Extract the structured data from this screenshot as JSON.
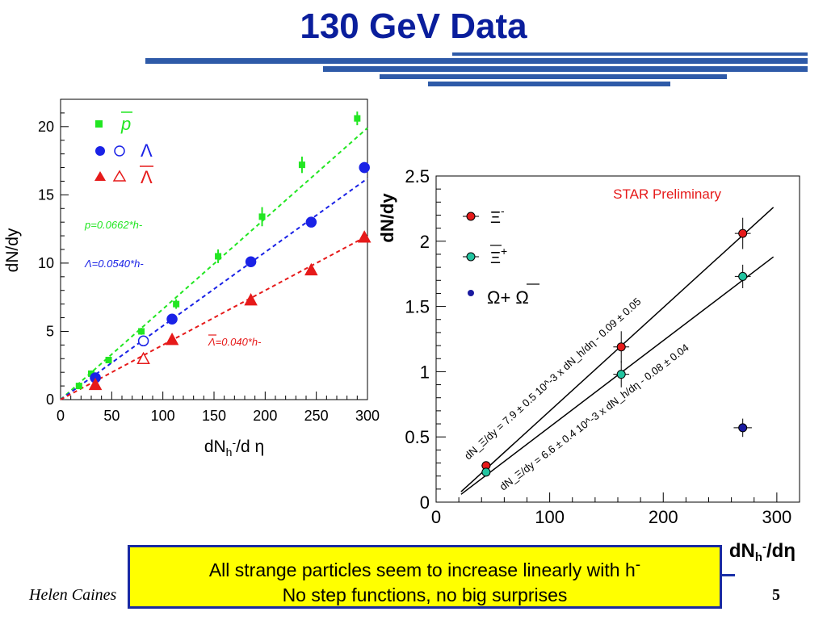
{
  "slide": {
    "title": "130 GeV Data",
    "author": "Helen Caines",
    "page_number": "5",
    "callout_line1": "All strange particles seem to increase linearly with h",
    "callout_line1_sup": "-",
    "callout_line2": "No step functions, no big surprises"
  },
  "colors": {
    "title": "#0a1e9c",
    "green": "#22e622",
    "blue": "#1a22e6",
    "red": "#e61a1a",
    "callout_bg": "#ffff00",
    "stripes": "#2e5aa8"
  },
  "chart_data": [
    {
      "type": "scatter",
      "title": "",
      "xlabel": "dN",
      "xlabel_sub": "h",
      "xlabel_sup": "-",
      "xlabel_rest": "/d η",
      "ylabel": "dN/dy",
      "xlim": [
        0,
        300
      ],
      "ylim": [
        0,
        22
      ],
      "xticks": [
        0,
        50,
        100,
        150,
        200,
        250,
        300
      ],
      "xtick_labels": [
        "0",
        "50",
        "100",
        "150",
        "200",
        "250",
        "300"
      ],
      "yticks": [
        0,
        5,
        10,
        15,
        20
      ],
      "ytick_labels": [
        "0",
        "5",
        "10",
        "15",
        "20"
      ],
      "legend": [
        {
          "symbol": "■",
          "label": "p",
          "color": "#22e622"
        },
        {
          "symbol": "● ○",
          "label": "Λ",
          "color": "#1a22e6"
        },
        {
          "symbol": "▲ △",
          "label": "Λ",
          "color": "#e61a1a"
        }
      ],
      "fit_labels": [
        "p=0.0662*h-",
        "Λ=0.0540*h-",
        "Λ=0.040*h-"
      ],
      "series": [
        {
          "name": "p",
          "marker": "square",
          "filled": true,
          "color": "#22e622",
          "x": [
            18,
            30,
            47,
            79,
            113,
            154,
            197,
            236,
            290
          ],
          "y": [
            1.0,
            1.9,
            2.9,
            5.0,
            7.0,
            10.5,
            13.4,
            17.2,
            20.6
          ],
          "yerr": [
            0.15,
            0.15,
            0.2,
            0.25,
            0.35,
            0.5,
            0.7,
            0.6,
            0.5
          ],
          "fit": {
            "x": [
              0,
              300
            ],
            "y": [
              0,
              19.9
            ]
          }
        },
        {
          "name": "Λ",
          "marker": "circle",
          "filled": true,
          "color": "#1a22e6",
          "x": [
            34,
            109,
            186,
            245,
            297
          ],
          "y": [
            1.6,
            5.9,
            10.1,
            13.0,
            17.0
          ],
          "yerr": [
            0.2,
            0.3,
            0.35,
            0.3,
            0.4
          ],
          "fit": {
            "x": [
              0,
              300
            ],
            "y": [
              0,
              16.2
            ]
          }
        },
        {
          "name": "Λ open",
          "marker": "circle",
          "filled": false,
          "color": "#1a22e6",
          "x": [
            81
          ],
          "y": [
            4.3
          ],
          "yerr": [
            0.2
          ]
        },
        {
          "name": "Λbar",
          "marker": "triangle",
          "filled": true,
          "color": "#e61a1a",
          "x": [
            34,
            109,
            186,
            245,
            297
          ],
          "y": [
            1.1,
            4.4,
            7.3,
            9.5,
            11.9
          ],
          "yerr": [
            0.15,
            0.25,
            0.25,
            0.3,
            0.35
          ],
          "fit": {
            "x": [
              0,
              300
            ],
            "y": [
              0,
              12.0
            ]
          }
        },
        {
          "name": "Λbar open",
          "marker": "triangle",
          "filled": false,
          "color": "#e61a1a",
          "x": [
            81
          ],
          "y": [
            3.0
          ],
          "yerr": [
            0.2
          ]
        }
      ]
    },
    {
      "type": "scatter",
      "title": "STAR Preliminary",
      "xlabel": "dN",
      "xlabel_sub": "h",
      "xlabel_sup": "-",
      "xlabel_rest": "/dη",
      "ylabel": "dN/dy",
      "xlim": [
        0,
        320
      ],
      "ylim": [
        0,
        2.5
      ],
      "xticks": [
        0,
        100,
        200,
        300
      ],
      "xtick_labels": [
        "0",
        "100",
        "200",
        "300"
      ],
      "yticks": [
        0,
        0.5,
        1,
        1.5,
        2,
        2.5
      ],
      "ytick_labels": [
        "0",
        "0.5",
        "1",
        "1.5",
        "2",
        "2.5"
      ],
      "legend": [
        {
          "label": "Ξ",
          "sup": "-",
          "color": "#e61a1a"
        },
        {
          "label": "Ξ",
          "sup": "+",
          "color": "#22c4a0"
        },
        {
          "label": "Ω+ Ω",
          "color": "#1a1aa0"
        }
      ],
      "fit_labels": [
        "dN_Ξ/dy = 7.9 ± 0.5 10^-3 x dN_h/dη - 0.09 ± 0.05",
        "dN_Ξ/dy = 6.6 ± 0.4 10^-3 x dN_h/dη - 0.08 ± 0.04"
      ],
      "series": [
        {
          "name": "Ξ-",
          "color": "#e61a1a",
          "x": [
            44,
            163,
            270
          ],
          "y": [
            0.28,
            1.19,
            2.06
          ],
          "yerr": [
            0.03,
            0.12,
            0.12
          ],
          "xerr": [
            4,
            7,
            7
          ],
          "fit": {
            "x": [
              22,
              297
            ],
            "y": [
              0.08,
              2.26
            ]
          }
        },
        {
          "name": "Ξ+",
          "color": "#22c4a0",
          "x": [
            44,
            163,
            270
          ],
          "y": [
            0.23,
            0.98,
            1.73
          ],
          "yerr": [
            0.03,
            0.1,
            0.09
          ],
          "xerr": [
            4,
            7,
            7
          ],
          "fit": {
            "x": [
              22,
              297
            ],
            "y": [
              0.06,
              1.88
            ]
          }
        },
        {
          "name": "Ω+Ωbar",
          "color": "#1a1aa0",
          "x": [
            270
          ],
          "y": [
            0.57
          ],
          "yerr": [
            0.07
          ],
          "xerr": [
            8
          ]
        }
      ]
    }
  ]
}
